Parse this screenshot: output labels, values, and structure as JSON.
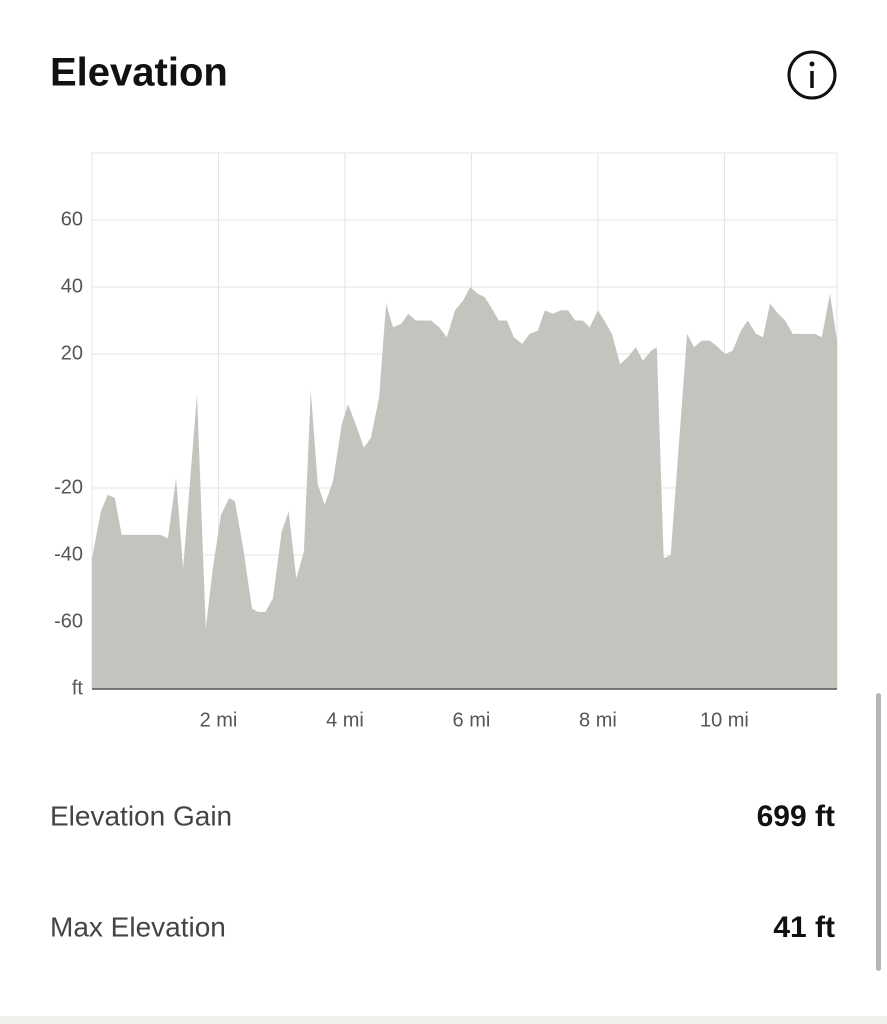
{
  "header": {
    "title": "Elevation"
  },
  "chart_data": {
    "type": "area",
    "color": "#c4c3be",
    "grid": true,
    "xlim": [
      0,
      11.78
    ],
    "ylim": [
      -80,
      80
    ],
    "xticks": [
      {
        "value": 2,
        "label": "2 mi"
      },
      {
        "value": 4,
        "label": "4 mi"
      },
      {
        "value": 6,
        "label": "6 mi"
      },
      {
        "value": 8,
        "label": "8 mi"
      },
      {
        "value": 10,
        "label": "10 mi"
      }
    ],
    "yticks": [
      {
        "value": -80,
        "label": "ft"
      },
      -60,
      -40,
      -20,
      20,
      40,
      60
    ],
    "x": [
      0,
      0.14,
      0.25,
      0.36,
      0.47,
      1.08,
      1.2,
      1.33,
      1.44,
      1.66,
      1.8,
      1.91,
      2.04,
      2.17,
      2.26,
      2.39,
      2.53,
      2.63,
      2.74,
      2.86,
      3.0,
      3.11,
      3.23,
      3.35,
      3.46,
      3.57,
      3.68,
      3.81,
      3.95,
      4.05,
      4.17,
      4.3,
      4.41,
      4.54,
      4.65,
      4.76,
      4.89,
      5.0,
      5.12,
      5.25,
      5.36,
      5.49,
      5.61,
      5.74,
      5.87,
      5.98,
      6.1,
      6.21,
      6.34,
      6.43,
      6.56,
      6.67,
      6.8,
      6.92,
      7.05,
      7.16,
      7.29,
      7.41,
      7.53,
      7.64,
      7.76,
      7.87,
      8.0,
      8.13,
      8.22,
      8.35,
      8.47,
      8.6,
      8.71,
      8.84,
      8.93,
      9.04,
      9.15,
      9.41,
      9.52,
      9.64,
      9.77,
      9.9,
      10.01,
      10.13,
      10.26,
      10.37,
      10.5,
      10.61,
      10.72,
      10.85,
      10.96,
      11.08,
      11.43,
      11.54,
      11.67,
      11.78
    ],
    "values": [
      -41,
      -27,
      -22,
      -23,
      -34,
      -34,
      -35,
      -17,
      -44,
      8,
      -62,
      -44,
      -28,
      -23,
      -24,
      -38,
      -56,
      -57,
      -57,
      -53,
      -33,
      -27,
      -47,
      -39,
      9,
      -19,
      -25,
      -18,
      -1,
      5,
      -1,
      -8,
      -5,
      7,
      35,
      28,
      29,
      32,
      30,
      30,
      30,
      28,
      25,
      33,
      36,
      40,
      38,
      37,
      33,
      30,
      30,
      25,
      23,
      26,
      27,
      33,
      32,
      33,
      33,
      30,
      30,
      28,
      33,
      29,
      26,
      17,
      19,
      22,
      18,
      21,
      22,
      -41,
      -40,
      26,
      22,
      24,
      24,
      22,
      20,
      21,
      27,
      30,
      26,
      25,
      35,
      32,
      30,
      26,
      26,
      25,
      38,
      24
    ]
  },
  "stats": [
    {
      "label": "Elevation Gain",
      "value": "699 ft"
    },
    {
      "label": "Max Elevation",
      "value": "41 ft"
    }
  ]
}
